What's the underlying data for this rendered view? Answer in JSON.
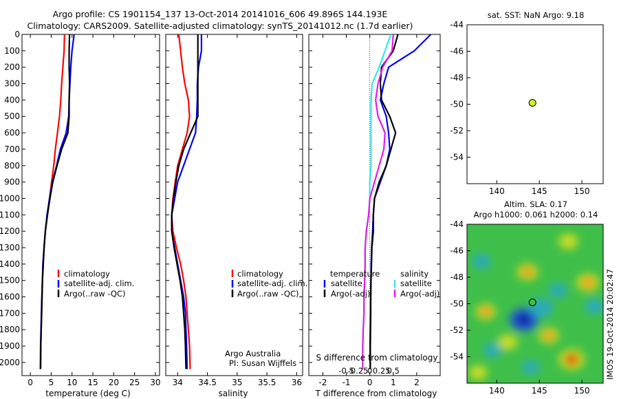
{
  "header": {
    "line1": "Argo profile: CS 1901154_137 13-Oct-2014 20141016_606 49.896S 144.193E",
    "line2": "Climatology: CARS2009. Satellite-adjusted climatology: synTS_20141012.nc (1.7d earlier)"
  },
  "colors": {
    "climatology": "#ff0000",
    "satellite_clim": "#0000ff",
    "argo": "#000000",
    "sal_satellite": "#33e6ee",
    "sal_argo": "#e619e6",
    "marker": "#d4f020"
  },
  "note": {
    "line1": "Argo Australia",
    "line2": "PI: Susan Wijffels"
  },
  "stamp": "IMOS 19-Oct-2014 20:02:47",
  "chart_data": [
    {
      "id": "temperature",
      "type": "line",
      "xlabel": "temperature (deg C)",
      "ylabel": "",
      "xlim": [
        -2,
        31
      ],
      "ylim": [
        2080,
        0
      ],
      "xticks": [
        0,
        5,
        10,
        15,
        20,
        25,
        30
      ],
      "yticks": [
        0,
        100,
        200,
        300,
        400,
        500,
        600,
        700,
        800,
        900,
        1000,
        1100,
        1200,
        1300,
        1400,
        1500,
        1600,
        1700,
        1800,
        1900,
        2000
      ],
      "legend": [
        "climatology",
        "satellite-adj. clim.",
        "Argo(..raw -QC)"
      ],
      "series": [
        {
          "name": "climatology",
          "color": "#ff0000",
          "x": [
            8.2,
            8.1,
            7.8,
            7.5,
            7.3,
            7.0,
            6.5,
            6.0,
            5.6,
            5.1,
            4.6,
            4.1,
            3.6,
            3.3,
            3.1,
            2.9,
            2.8,
            2.7,
            2.6,
            2.5,
            2.45
          ],
          "y": [
            0,
            100,
            200,
            300,
            400,
            500,
            600,
            700,
            800,
            900,
            1000,
            1100,
            1200,
            1300,
            1400,
            1500,
            1600,
            1700,
            1800,
            1900,
            2040
          ]
        },
        {
          "name": "satellite-adj. clim.",
          "color": "#0000ff",
          "x": [
            10.5,
            10.0,
            9.7,
            9.5,
            9.3,
            9.2,
            8.6,
            7.2,
            6.3,
            5.3,
            4.6,
            4.0,
            3.6,
            3.3,
            3.0,
            2.9,
            2.75,
            2.65,
            2.55,
            2.45,
            2.4
          ],
          "y": [
            0,
            100,
            200,
            300,
            400,
            500,
            600,
            700,
            800,
            900,
            1000,
            1100,
            1200,
            1300,
            1400,
            1500,
            1600,
            1700,
            1800,
            1900,
            2040
          ]
        },
        {
          "name": "Argo(..raw -QC)",
          "color": "#000000",
          "x": [
            9.4,
            9.3,
            9.3,
            9.4,
            9.3,
            9.3,
            9.0,
            7.5,
            6.4,
            5.4,
            4.7,
            4.1,
            3.6,
            3.3,
            3.1,
            2.9,
            2.8,
            2.7,
            2.6,
            2.5,
            2.45
          ],
          "y": [
            0,
            100,
            200,
            300,
            400,
            500,
            600,
            700,
            800,
            900,
            1000,
            1100,
            1200,
            1300,
            1400,
            1500,
            1600,
            1700,
            1800,
            1900,
            2040
          ]
        }
      ]
    },
    {
      "id": "salinity",
      "type": "line",
      "xlabel": "salinity",
      "xlim": [
        33.8,
        36.1
      ],
      "ylim": [
        2080,
        0
      ],
      "xticks": [
        34,
        34.5,
        35,
        35.5,
        36
      ],
      "legend": [
        "climatology",
        "satellite-adj. clim.",
        "Argo(..raw -QC)"
      ],
      "series": [
        {
          "name": "climatology",
          "color": "#ff0000",
          "x": [
            34.02,
            34.05,
            34.08,
            34.12,
            34.18,
            34.2,
            34.16,
            34.08,
            34.0,
            33.96,
            33.92,
            33.9,
            33.92,
            33.98,
            34.05,
            34.1,
            34.14,
            34.16,
            34.18,
            34.2,
            34.21
          ],
          "y": [
            0,
            100,
            200,
            300,
            400,
            500,
            600,
            700,
            800,
            900,
            1000,
            1100,
            1200,
            1300,
            1400,
            1500,
            1600,
            1700,
            1800,
            1900,
            2040
          ]
        },
        {
          "name": "satellite-adj. clim.",
          "color": "#0000ff",
          "x": [
            34.4,
            34.4,
            34.35,
            34.33,
            34.33,
            34.32,
            34.3,
            34.2,
            34.1,
            34.0,
            33.95,
            33.9,
            33.9,
            33.95,
            34.0,
            34.05,
            34.1,
            34.13,
            34.14,
            34.15,
            34.16
          ],
          "y": [
            0,
            100,
            200,
            300,
            400,
            500,
            600,
            700,
            800,
            900,
            1000,
            1100,
            1200,
            1300,
            1400,
            1500,
            1600,
            1700,
            1800,
            1900,
            2040
          ]
        },
        {
          "name": "Argo(..raw -QC)",
          "color": "#000000",
          "x": [
            34.34,
            34.34,
            34.34,
            34.34,
            34.34,
            34.34,
            34.22,
            34.1,
            34.02,
            33.97,
            33.93,
            33.9,
            33.9,
            33.94,
            33.99,
            34.04,
            34.08,
            34.1,
            34.12,
            34.13,
            34.14
          ],
          "y": [
            0,
            100,
            200,
            300,
            400,
            500,
            600,
            700,
            800,
            900,
            1000,
            1100,
            1200,
            1300,
            1400,
            1500,
            1600,
            1700,
            1800,
            1900,
            2040
          ]
        }
      ]
    },
    {
      "id": "differences",
      "type": "line",
      "xlabel": "T difference from climatology",
      "xlabel_top": "S difference from climatology",
      "xlim": [
        -2.6,
        3.0
      ],
      "ylim": [
        2080,
        0
      ],
      "xticks": [
        -2,
        -1,
        0,
        1,
        2
      ],
      "xticks_s": [
        "-0.5",
        "-0.25",
        "0",
        "0.25",
        "0.5"
      ],
      "legend_left_title": "temperature",
      "legend_right_title": "salinity",
      "legend": [
        "satellite",
        "Argo(-adj)",
        "satellite",
        "Argo(-adj)"
      ],
      "series": [
        {
          "name": "satellite",
          "quantity": "temperature",
          "color": "#0000ff",
          "x": [
            2.6,
            1.9,
            0.8,
            0.6,
            0.45,
            0.7,
            0.8,
            0.85,
            0.7,
            0.45,
            0.2,
            0.15,
            0.12,
            0.08,
            0.06,
            0.05,
            0.04,
            0.03,
            0.02,
            0.01,
            0.02
          ],
          "y": [
            0,
            100,
            200,
            300,
            400,
            500,
            600,
            700,
            800,
            900,
            1000,
            1100,
            1200,
            1300,
            1400,
            1500,
            1600,
            1700,
            1800,
            1900,
            2040
          ]
        },
        {
          "name": "Argo(-adj)",
          "quantity": "temperature",
          "color": "#000000",
          "x": [
            1.2,
            1.0,
            0.5,
            0.45,
            0.5,
            0.85,
            1.1,
            0.9,
            0.7,
            0.4,
            0.2,
            0.15,
            0.15,
            0.09,
            0.07,
            0.05,
            0.04,
            0.04,
            0.03,
            0.02,
            0.02
          ],
          "y": [
            0,
            100,
            200,
            300,
            400,
            500,
            600,
            700,
            800,
            900,
            1000,
            1100,
            1200,
            1300,
            1400,
            1500,
            1600,
            1700,
            1800,
            1900,
            2040
          ]
        },
        {
          "name": "satellite",
          "quantity": "salinity",
          "color": "#33e6ee",
          "x": [
            0.9,
            0.65,
            0.4,
            0.1,
            0.05,
            0.05,
            0.05,
            0.05,
            0.05,
            0.0,
            0.0,
            -0.05,
            -0.15,
            -0.2,
            -0.2,
            -0.22,
            -0.25,
            -0.25,
            -0.28,
            -0.3,
            -0.3
          ],
          "y": [
            0,
            100,
            200,
            300,
            400,
            500,
            600,
            700,
            800,
            900,
            1000,
            1100,
            1200,
            1300,
            1400,
            1500,
            1600,
            1700,
            1800,
            1900,
            2040
          ]
        },
        {
          "name": "Argo(-adj)",
          "quantity": "salinity",
          "color": "#e619e6",
          "x": [
            1.0,
            0.95,
            0.55,
            0.35,
            0.25,
            0.35,
            0.65,
            0.6,
            0.4,
            0.2,
            0.0,
            -0.05,
            -0.15,
            -0.2,
            -0.2,
            -0.22,
            -0.25,
            -0.25,
            -0.28,
            -0.3,
            -0.3
          ],
          "y": [
            0,
            100,
            200,
            300,
            400,
            500,
            600,
            700,
            800,
            900,
            1000,
            1100,
            1200,
            1300,
            1400,
            1500,
            1600,
            1700,
            1800,
            1900,
            2040
          ]
        }
      ]
    },
    {
      "id": "sst_map",
      "type": "scatter",
      "title": "sat. SST: NaN Argo: 9.18",
      "xlim": [
        136.5,
        152.5
      ],
      "ylim": [
        -56,
        -44
      ],
      "xticks": [
        140,
        145,
        150
      ],
      "yticks": [
        -44,
        -46,
        -48,
        -50,
        -52,
        -54
      ],
      "points": [
        {
          "x": 144.193,
          "y": -49.896
        }
      ]
    },
    {
      "id": "sla_map",
      "type": "heatmap",
      "title_line1": "Altim. SLA: 0.17",
      "title_line2": "Argo h1000: 0.061 h2000: 0.14",
      "xlim": [
        136.5,
        152.5
      ],
      "ylim": [
        -56,
        -44
      ],
      "xticks": [
        140,
        145,
        150
      ],
      "yticks": [
        -44,
        -46,
        -48,
        -50,
        -52,
        -54
      ],
      "points": [
        {
          "x": 144.193,
          "y": -49.896
        }
      ],
      "features": [
        {
          "kind": "low",
          "x": 143.2,
          "y": -51.2,
          "strength": 1.0
        },
        {
          "kind": "low",
          "x": 145.2,
          "y": -50.3,
          "strength": 0.7
        },
        {
          "kind": "low",
          "x": 139.5,
          "y": -53.5,
          "strength": 0.35
        },
        {
          "kind": "low",
          "x": 147.2,
          "y": -49.0,
          "strength": 0.35
        },
        {
          "kind": "low",
          "x": 151.5,
          "y": -50.2,
          "strength": 0.4
        },
        {
          "kind": "low",
          "x": 138.2,
          "y": -46.8,
          "strength": 0.35
        },
        {
          "kind": "low",
          "x": 144.0,
          "y": -54.8,
          "strength": 0.3
        },
        {
          "kind": "high",
          "x": 148.8,
          "y": -54.2,
          "strength": 0.9
        },
        {
          "kind": "high",
          "x": 138.7,
          "y": -50.6,
          "strength": 0.55
        },
        {
          "kind": "high",
          "x": 143.6,
          "y": -47.6,
          "strength": 0.6
        },
        {
          "kind": "high",
          "x": 150.7,
          "y": -48.4,
          "strength": 0.7
        },
        {
          "kind": "high",
          "x": 141.3,
          "y": -52.9,
          "strength": 0.5
        },
        {
          "kind": "high",
          "x": 146.1,
          "y": -52.4,
          "strength": 0.55
        },
        {
          "kind": "high",
          "x": 148.4,
          "y": -45.3,
          "strength": 0.5
        },
        {
          "kind": "high",
          "x": 137.8,
          "y": -55.2,
          "strength": 0.45
        }
      ]
    }
  ]
}
